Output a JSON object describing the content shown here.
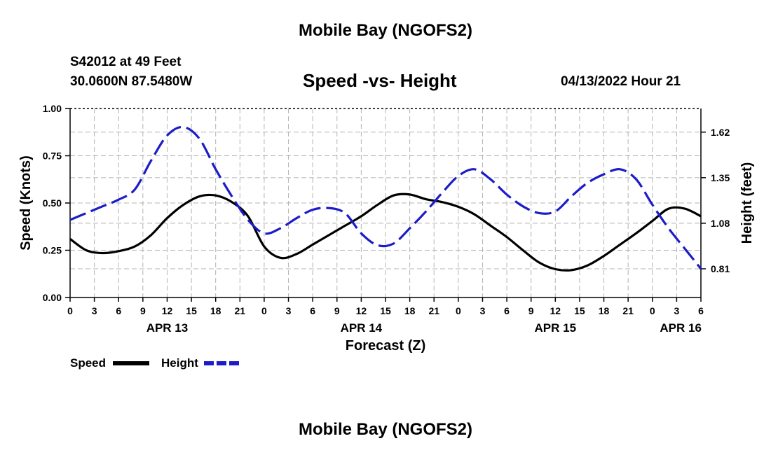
{
  "page": {
    "title_top": "Mobile Bay (NGOFS2)",
    "title_bottom": "Mobile Bay (NGOFS2)",
    "station": "S42012 at 49 Feet",
    "coords": "30.0600N  87.5480W",
    "subtitle": "Speed -vs- Height",
    "datetime": "04/13/2022 Hour 21"
  },
  "chart_data": {
    "type": "line",
    "title": "Speed -vs- Height",
    "xlabel": "Forecast (Z)",
    "ylabel": "Speed (Knots)",
    "y2label": "Height (feet)",
    "x_hours": [
      0,
      3,
      6,
      9,
      12,
      15,
      18,
      21,
      24,
      27,
      30,
      33,
      36,
      39,
      42,
      45,
      48,
      51,
      54,
      57,
      60,
      63,
      66,
      69,
      72,
      75,
      78
    ],
    "x_tick_labels": [
      "0",
      "3",
      "6",
      "9",
      "12",
      "15",
      "18",
      "21",
      "0",
      "3",
      "6",
      "9",
      "12",
      "15",
      "18",
      "21",
      "0",
      "3",
      "6",
      "9",
      "12",
      "15",
      "18",
      "21",
      "0",
      "3",
      "6"
    ],
    "date_labels": [
      {
        "label": "APR 13",
        "hour": 12
      },
      {
        "label": "APR 14",
        "hour": 36
      },
      {
        "label": "APR 15",
        "hour": 60
      },
      {
        "label": "APR 16",
        "hour": 75.5
      }
    ],
    "ylim": [
      0,
      1.0
    ],
    "yticks": [
      0.0,
      0.25,
      0.5,
      0.75,
      1.0
    ],
    "ytick_labels": [
      "0.00",
      "0.25",
      "0.50",
      "0.75",
      "1.00"
    ],
    "y2lim": [
      0.64,
      1.76
    ],
    "y2ticks": [
      0.81,
      1.08,
      1.35,
      1.62
    ],
    "y2tick_labels": [
      "0.81",
      "1.08",
      "1.35",
      "1.62"
    ],
    "grid": true,
    "series": [
      {
        "name": "Speed",
        "axis": "left",
        "color": "#000000",
        "style": "solid",
        "x": [
          0,
          2,
          4,
          6,
          8,
          10,
          12,
          14,
          16,
          18,
          20,
          22,
          24,
          26,
          28,
          30,
          32,
          34,
          36,
          38,
          40,
          42,
          44,
          46,
          48,
          50,
          52,
          54,
          56,
          58,
          60,
          62,
          64,
          66,
          68,
          70,
          72,
          74,
          76,
          78
        ],
        "values": [
          0.31,
          0.25,
          0.235,
          0.245,
          0.27,
          0.33,
          0.42,
          0.49,
          0.535,
          0.54,
          0.505,
          0.43,
          0.27,
          0.21,
          0.23,
          0.28,
          0.33,
          0.38,
          0.43,
          0.49,
          0.54,
          0.545,
          0.52,
          0.505,
          0.48,
          0.44,
          0.38,
          0.32,
          0.25,
          0.185,
          0.15,
          0.145,
          0.17,
          0.22,
          0.28,
          0.34,
          0.405,
          0.47,
          0.47,
          0.43
        ]
      },
      {
        "name": "Height",
        "axis": "right",
        "color": "#1c1cc8",
        "style": "dashed",
        "x": [
          0,
          2,
          4,
          6,
          8,
          10,
          12,
          14,
          16,
          18,
          20,
          22,
          24,
          26,
          28,
          30,
          32,
          34,
          36,
          38,
          40,
          42,
          44,
          46,
          48,
          50,
          52,
          54,
          56,
          58,
          60,
          62,
          64,
          66,
          68,
          70,
          72,
          74,
          76,
          78
        ],
        "values": [
          1.1,
          1.14,
          1.18,
          1.22,
          1.28,
          1.45,
          1.6,
          1.65,
          1.58,
          1.4,
          1.24,
          1.1,
          1.02,
          1.05,
          1.11,
          1.16,
          1.17,
          1.14,
          1.02,
          0.95,
          0.96,
          1.05,
          1.15,
          1.26,
          1.36,
          1.4,
          1.34,
          1.25,
          1.18,
          1.14,
          1.15,
          1.24,
          1.32,
          1.37,
          1.4,
          1.34,
          1.19,
          1.05,
          0.93,
          0.81
        ]
      }
    ],
    "legend": {
      "placement": "bottom-left",
      "entries": [
        "Speed",
        "Height"
      ]
    }
  }
}
